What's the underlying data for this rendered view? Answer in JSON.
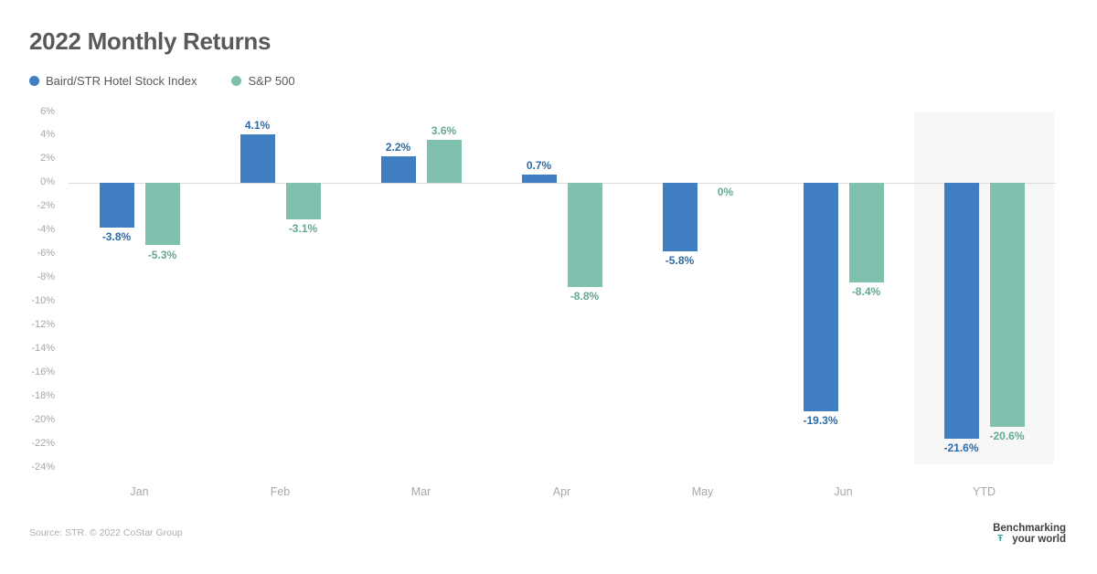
{
  "title": "2022 Monthly Returns",
  "legend": [
    {
      "label": "Baird/STR Hotel Stock Index",
      "color": "#3e7ec1"
    },
    {
      "label": "S&P 500",
      "color": "#7fc0ae"
    }
  ],
  "chart_data": {
    "type": "bar",
    "title": "2022 Monthly Returns",
    "categories": [
      "Jan",
      "Feb",
      "Mar",
      "Apr",
      "May",
      "Jun",
      "YTD"
    ],
    "series": [
      {
        "name": "Baird/STR Hotel Stock Index",
        "color": "#3e7ec1",
        "label_color": "#2b6ca8",
        "values": [
          -3.8,
          4.1,
          2.2,
          0.7,
          -5.8,
          -19.3,
          -21.6
        ],
        "labels": [
          "-3.8%",
          "4.1%",
          "2.2%",
          "0.7%",
          "-5.8%",
          "-19.3%",
          "-21.6%"
        ]
      },
      {
        "name": "S&P 500",
        "color": "#7fc0ae",
        "label_color": "#64a991",
        "values": [
          -5.3,
          -3.1,
          3.6,
          -8.8,
          0,
          -8.4,
          -20.6
        ],
        "labels": [
          "-5.3%",
          "-3.1%",
          "3.6%",
          "-8.8%",
          "0%",
          "-8.4%",
          "-20.6%"
        ]
      }
    ],
    "y_ticks": [
      "6%",
      "4%",
      "2%",
      "0%",
      "-2%",
      "-4%",
      "-6%",
      "-8%",
      "-10%",
      "-12%",
      "-14%",
      "-16%",
      "-18%",
      "-20%",
      "-22%",
      "-24%"
    ],
    "ylim": [
      -24,
      6
    ],
    "xlabel": "",
    "ylabel": "",
    "grid": false,
    "zero_line_color": "#dcdcdc",
    "highlight_category": "YTD",
    "highlight_color": "#f7f7f7",
    "legend_position": "top-left"
  },
  "footer": {
    "source": "Source: STR. © 2022 CoStar Group",
    "logo_line1": "Benchmarking",
    "logo_line2": "your world",
    "logo_glyph": "Ŧ",
    "logo_glyph_color": "#2fa89c"
  }
}
